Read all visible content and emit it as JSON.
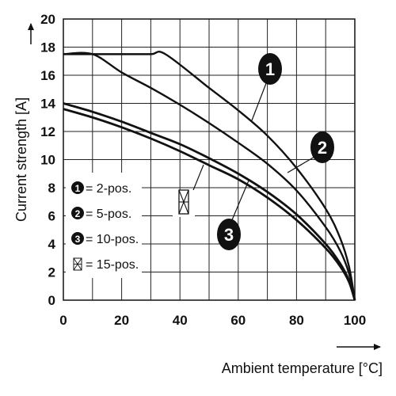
{
  "chart_data": {
    "type": "line",
    "xlabel": "Ambient temperature [°C]",
    "ylabel": "Current strength [A]",
    "xlim": [
      0,
      100
    ],
    "ylim": [
      0,
      20
    ],
    "xticks": [
      "0",
      "20",
      "40",
      "60",
      "80",
      "100"
    ],
    "yticks": [
      "0",
      "2",
      "4",
      "6",
      "8",
      "10",
      "12",
      "14",
      "16",
      "18",
      "20"
    ],
    "grid": true,
    "legend_position": "left",
    "series": [
      {
        "name": "= 2-pos.",
        "marker": "1",
        "x": [
          0,
          10,
          20,
          30,
          35,
          50,
          60,
          70,
          80,
          90,
          95,
          98,
          100
        ],
        "y": [
          17.5,
          17.5,
          17.5,
          17.5,
          17.5,
          15.1,
          13.5,
          11.7,
          9.4,
          6.5,
          4.4,
          2.4,
          0
        ]
      },
      {
        "name": "= 5-pos.",
        "marker": "2",
        "x": [
          0,
          10,
          20,
          30,
          40,
          50,
          60,
          70,
          80,
          90,
          95,
          98,
          100
        ],
        "y": [
          17.5,
          17.5,
          16.2,
          15.1,
          13.9,
          12.6,
          11.2,
          9.7,
          7.8,
          5.2,
          3.5,
          1.9,
          0
        ]
      },
      {
        "name": "= 10-pos.",
        "marker": "3",
        "x": [
          0,
          10,
          20,
          30,
          40,
          50,
          60,
          70,
          80,
          90,
          95,
          98,
          100
        ],
        "y": [
          14.0,
          13.4,
          12.7,
          11.9,
          11.1,
          10.1,
          9.0,
          7.7,
          6.1,
          4.0,
          2.6,
          1.4,
          0
        ]
      },
      {
        "name": "= 15-pos.",
        "marker": "crossed-box",
        "x": [
          0,
          10,
          20,
          30,
          40,
          50,
          60,
          70,
          80,
          90,
          95,
          98,
          100
        ],
        "y": [
          13.6,
          13.0,
          12.3,
          11.5,
          10.6,
          9.6,
          8.6,
          7.3,
          5.7,
          3.7,
          2.4,
          1.3,
          0
        ]
      }
    ]
  }
}
